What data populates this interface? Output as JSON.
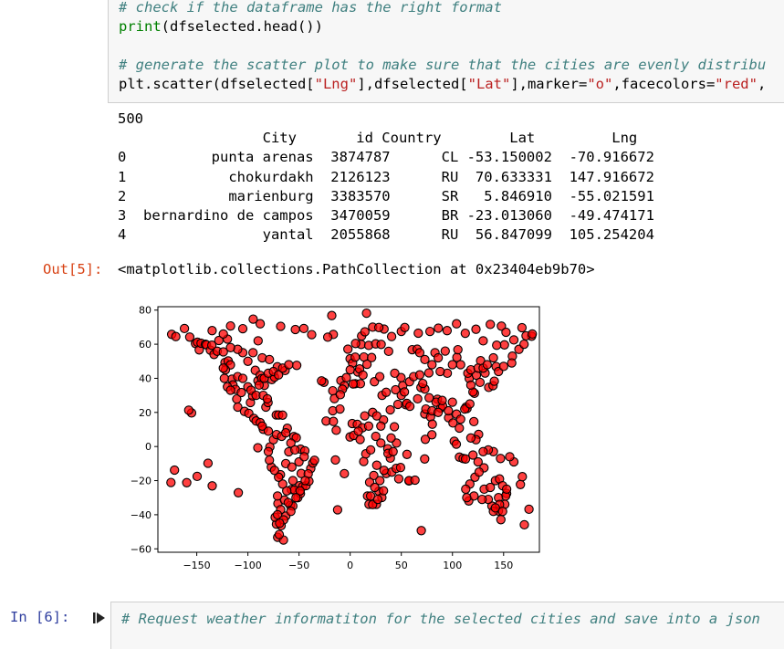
{
  "cell5": {
    "lines": [
      {
        "comment": "# check if the dataframe has the right format"
      },
      {
        "fn": "print",
        "rest": "(dfselected.head())"
      },
      {
        "blank": ""
      },
      {
        "comment": "# generate the scatter plot to make sure that the cities are evenly distribu"
      },
      {
        "pre": "plt.scatter(dfselected[",
        "s1": "\"Lng\"",
        "mid1": "],dfselected[",
        "s2": "\"Lat\"",
        "mid2": "],marker=",
        "s3": "\"o\"",
        "mid3": ",facecolors=",
        "s4": "\"red\"",
        "post": ","
      }
    ]
  },
  "output5": {
    "count": "500",
    "table": {
      "header": "                 City       id Country        Lat         Lng",
      "rows": [
        "0          punta arenas  3874787      CL -53.150002  -70.916672",
        "1            chokurdakh  2126123      RU  70.633331  147.916672",
        "2            marienburg  3383570      SR   5.846910  -55.021591",
        "3  bernardino de campos  3470059      BR -23.013060  -49.474171",
        "4                yantal  2055868      RU  56.847099  105.254204"
      ]
    },
    "out_prompt": "Out[5]:",
    "repr": "<matplotlib.collections.PathCollection at 0x23404eb9b70>"
  },
  "chart_data": {
    "type": "scatter",
    "x_ticks": [
      -150,
      -100,
      -50,
      0,
      50,
      100,
      150
    ],
    "y_ticks": [
      -60,
      -40,
      -20,
      0,
      20,
      40,
      60,
      80
    ],
    "xlim": [
      -188,
      185
    ],
    "ylim": [
      -62,
      82
    ],
    "marker_face": "#ff0000",
    "marker_edge": "#000000",
    "marker_alpha": 0.75,
    "points": [
      [
        -174.5,
        65.8
      ],
      [
        -170.5,
        64.5
      ],
      [
        -162,
        69.2
      ],
      [
        -156.9,
        64.2
      ],
      [
        -151.2,
        60.4
      ],
      [
        -149.4,
        61.2
      ],
      [
        -147.6,
        56.7
      ],
      [
        -145.8,
        60.6
      ],
      [
        -141.5,
        60
      ],
      [
        -140.5,
        59.6
      ],
      [
        -136.7,
        56.5
      ],
      [
        -135.3,
        59.4
      ],
      [
        -133.1,
        54
      ],
      [
        -130,
        55.9
      ],
      [
        -128.4,
        62.2
      ],
      [
        -124,
        55.5
      ],
      [
        -122.4,
        49.3
      ],
      [
        -119.3,
        50.2
      ],
      [
        -117.1,
        47.9
      ],
      [
        -115.5,
        39.5
      ],
      [
        -114.6,
        36.1
      ],
      [
        -112.1,
        33.5
      ],
      [
        -110.9,
        27.9
      ],
      [
        -109.9,
        23.1
      ],
      [
        -106.4,
        31.7
      ],
      [
        -103.3,
        20.6
      ],
      [
        -99.1,
        19.4
      ],
      [
        -97.5,
        25.8
      ],
      [
        -95.4,
        29.7
      ],
      [
        -94.2,
        16.5
      ],
      [
        -92.8,
        44.7
      ],
      [
        -90.2,
        38.6
      ],
      [
        -88.1,
        41.8
      ],
      [
        -86.5,
        39.8
      ],
      [
        -84.9,
        10.1
      ],
      [
        -83.9,
        35.9
      ],
      [
        -82.4,
        23.1
      ],
      [
        -80.3,
        25.8
      ],
      [
        -78.5,
        -0.2
      ],
      [
        -77.1,
        -12.1
      ],
      [
        -76.6,
        39.3
      ],
      [
        -74.0,
        40.7
      ],
      [
        -72.3,
        18.5
      ],
      [
        -71.2,
        46.8
      ],
      [
        -70.9,
        -53.2
      ],
      [
        -70.7,
        -33.4
      ],
      [
        -69.9,
        18.5
      ],
      [
        -68.2,
        -16.5
      ],
      [
        -66.1,
        18.4
      ],
      [
        -64.2,
        -31.4
      ],
      [
        -63.6,
        44.6
      ],
      [
        -61.5,
        10.7
      ],
      [
        -60.0,
        -3.1
      ],
      [
        -58.4,
        -34.6
      ],
      [
        -57.5,
        -25.3
      ],
      [
        -56.1,
        -34.9
      ],
      [
        -55.0,
        5.8
      ],
      [
        -52.7,
        5.2
      ],
      [
        -49.5,
        -23.0
      ],
      [
        -48.5,
        -1.5
      ],
      [
        -47.9,
        -15.8
      ],
      [
        -46.6,
        -23.5
      ],
      [
        -44.3,
        -2.5
      ],
      [
        -43.2,
        -22.9
      ],
      [
        -40.3,
        -20.3
      ],
      [
        -38.5,
        -12.9
      ],
      [
        -36.6,
        -9.7
      ],
      [
        -34.9,
        -8.1
      ],
      [
        -52.3,
        47.6
      ],
      [
        -67.5,
        -46.4
      ],
      [
        -65.2,
        -54.8
      ],
      [
        -72.1,
        -45.5
      ],
      [
        -73.3,
        -41.5
      ],
      [
        -69.3,
        -51.6
      ],
      [
        -63.0,
        -40.8
      ],
      [
        -58.0,
        -38.0
      ],
      [
        -51.2,
        -30.0
      ],
      [
        -48.6,
        -27.6
      ],
      [
        -54.5,
        -25.5
      ],
      [
        -60.6,
        -32.9
      ],
      [
        -16.5,
        65.7
      ],
      [
        -21.9,
        64.1
      ],
      [
        -9.1,
        38.7
      ],
      [
        -3.7,
        40.4
      ],
      [
        -2.2,
        57.1
      ],
      [
        -0.1,
        51.5
      ],
      [
        2.3,
        48.9
      ],
      [
        4.9,
        52.4
      ],
      [
        7.4,
        43.7
      ],
      [
        9.2,
        45.5
      ],
      [
        10.7,
        59.9
      ],
      [
        12.5,
        41.9
      ],
      [
        13.4,
        52.5
      ],
      [
        16.4,
        48.2
      ],
      [
        18.1,
        59.3
      ],
      [
        21.0,
        52.2
      ],
      [
        23.7,
        38.0
      ],
      [
        24.9,
        60.2
      ],
      [
        28.9,
        41.0
      ],
      [
        30.3,
        59.9
      ],
      [
        31.2,
        30.0
      ],
      [
        32.6,
        15.6
      ],
      [
        35.2,
        31.8
      ],
      [
        36.8,
        -1.3
      ],
      [
        37.6,
        55.8
      ],
      [
        39.2,
        21.5
      ],
      [
        39.3,
        -6.8
      ],
      [
        44.4,
        33.3
      ],
      [
        45.3,
        2.0
      ],
      [
        46.7,
        24.7
      ],
      [
        47.5,
        -18.9
      ],
      [
        49.7,
        40.4
      ],
      [
        51.4,
        35.7
      ],
      [
        54.4,
        24.5
      ],
      [
        55.3,
        25.3
      ],
      [
        57.5,
        -20.2
      ],
      [
        58.4,
        23.6
      ],
      [
        60.6,
        56.8
      ],
      [
        65.5,
        57.1
      ],
      [
        69.2,
        34.6
      ],
      [
        72.9,
        19.1
      ],
      [
        73.0,
        33.7
      ],
      [
        76.9,
        43.2
      ],
      [
        77.2,
        28.6
      ],
      [
        78.5,
        17.4
      ],
      [
        80.3,
        13.1
      ],
      [
        82.9,
        55.0
      ],
      [
        85.3,
        27.7
      ],
      [
        88.4,
        22.6
      ],
      [
        90.4,
        23.8
      ],
      [
        92.9,
        56.0
      ],
      [
        96.2,
        16.9
      ],
      [
        100.5,
        13.8
      ],
      [
        101.7,
        3.1
      ],
      [
        103.8,
        1.4
      ],
      [
        104.3,
        52.3
      ],
      [
        105.3,
        56.8
      ],
      [
        106.8,
        -6.2
      ],
      [
        106.7,
        10.8
      ],
      [
        110.4,
        -7.0
      ],
      [
        112.8,
        -7.3
      ],
      [
        113.3,
        23.1
      ],
      [
        114.2,
        22.3
      ],
      [
        115.9,
        -31.9
      ],
      [
        116.4,
        39.9
      ],
      [
        120.9,
        14.6
      ],
      [
        121.5,
        31.2
      ],
      [
        123.4,
        41.8
      ],
      [
        125.6,
        7.1
      ],
      [
        126.9,
        37.6
      ],
      [
        127.5,
        50.3
      ],
      [
        130.8,
        -12.5
      ],
      [
        131.9,
        43.1
      ],
      [
        135.5,
        34.7
      ],
      [
        138.6,
        -34.9
      ],
      [
        139.7,
        35.7
      ],
      [
        140.9,
        38.3
      ],
      [
        142.7,
        46.9
      ],
      [
        144.9,
        -37.8
      ],
      [
        147.3,
        -42.9
      ],
      [
        147.9,
        70.6
      ],
      [
        150.8,
        59.6
      ],
      [
        151.2,
        -33.9
      ],
      [
        153.0,
        -27.5
      ],
      [
        158.6,
        53.0
      ],
      [
        166.4,
        -22.3
      ],
      [
        168.3,
        -17.7
      ],
      [
        170.3,
        -45.9
      ],
      [
        174.8,
        -36.8
      ],
      [
        177.4,
        64.7
      ],
      [
        -175.2,
        -21.1
      ],
      [
        -171.8,
        -13.8
      ],
      [
        -159.8,
        -21.2
      ],
      [
        -149.6,
        -17.5
      ],
      [
        -155.1,
        19.7
      ],
      [
        -157.8,
        21.3
      ],
      [
        -139.0,
        -9.8
      ],
      [
        -134.9,
        -23.1
      ],
      [
        -109.4,
        -27.1
      ],
      [
        -90.3,
        -0.7
      ],
      [
        -14.4,
        -7.9
      ],
      [
        -5.7,
        -15.9
      ],
      [
        -12.3,
        -37.1
      ],
      [
        -23.5,
        14.9
      ],
      [
        -25.7,
        37.7
      ],
      [
        -28.0,
        38.5
      ],
      [
        -17.0,
        32.7
      ],
      [
        -15.4,
        28.1
      ],
      [
        -13.6,
        9.5
      ],
      [
        -0.2,
        5.6
      ],
      [
        3.4,
        6.5
      ],
      [
        9.7,
        4.1
      ],
      [
        13.2,
        -8.8
      ],
      [
        15.3,
        -4.3
      ],
      [
        18.4,
        -33.9
      ],
      [
        25.6,
        -33.9
      ],
      [
        28.0,
        -26.2
      ],
      [
        31.0,
        -29.9
      ],
      [
        32.6,
        -25.9
      ],
      [
        35.3,
        -15.8
      ],
      [
        40.7,
        -15.0
      ],
      [
        43.2,
        11.6
      ],
      [
        45.0,
        -12.8
      ],
      [
        49.3,
        -12.3
      ],
      [
        55.5,
        -4.6
      ],
      [
        73.5,
        4.2
      ],
      [
        79.9,
        6.9
      ],
      [
        72.8,
        -7.3
      ],
      [
        57.6,
        -20.0
      ],
      [
        63.4,
        -19.7
      ],
      [
        69.5,
        -49.3
      ],
      [
        50.0,
        67.5
      ],
      [
        40.5,
        64.5
      ],
      [
        33.1,
        68.9
      ],
      [
        43.6,
        43.0
      ],
      [
        53.4,
        69.8
      ],
      [
        66.6,
        66.5
      ],
      [
        78.0,
        67.5
      ],
      [
        86.2,
        69.4
      ],
      [
        94.8,
        68.0
      ],
      [
        104.0,
        72.0
      ],
      [
        112.5,
        66.4
      ],
      [
        123.0,
        68.8
      ],
      [
        130.0,
        62.0
      ],
      [
        137.0,
        71.6
      ],
      [
        143.2,
        59.4
      ],
      [
        152.3,
        67.0
      ],
      [
        160.0,
        62.5
      ],
      [
        168.0,
        69.7
      ],
      [
        172.0,
        64.9
      ],
      [
        -88,
        72
      ],
      [
        -105,
        69.1
      ],
      [
        -94.8,
        74.7
      ],
      [
        -117,
        70.7
      ],
      [
        -68,
        70.5
      ],
      [
        -45.3,
        69.2
      ],
      [
        -53.6,
        68.6
      ],
      [
        -37.6,
        65.6
      ],
      [
        -18.0,
        76.8
      ],
      [
        16,
        78.2
      ],
      [
        22,
        70.0
      ],
      [
        28,
        69.8
      ],
      [
        11.2,
        64.8
      ],
      [
        14.4,
        67.3
      ],
      [
        5.3,
        60.4
      ],
      [
        0,
        45
      ],
      [
        5,
        36.8
      ],
      [
        10,
        36.8
      ],
      [
        2.9,
        36.7
      ],
      [
        -5.8,
        35.7
      ],
      [
        -7.6,
        33.6
      ],
      [
        -9.6,
        30.4
      ],
      [
        -17.0,
        21.0
      ],
      [
        -16.4,
        14.7
      ],
      [
        -10,
        22
      ],
      [
        2,
        13.5
      ],
      [
        7,
        13
      ],
      [
        12,
        11
      ],
      [
        18,
        12
      ],
      [
        8,
        9
      ],
      [
        14.2,
        18
      ],
      [
        22,
        20
      ],
      [
        26,
        18
      ],
      [
        30,
        12
      ],
      [
        25,
        6
      ],
      [
        30,
        2
      ],
      [
        20,
        -2
      ],
      [
        26,
        -11
      ],
      [
        23,
        -17
      ],
      [
        19,
        -21
      ],
      [
        24,
        -24
      ],
      [
        29,
        -20
      ],
      [
        33,
        -14
      ],
      [
        37,
        -4
      ],
      [
        40,
        5
      ],
      [
        42,
        -3
      ],
      [
        17,
        -29
      ],
      [
        20,
        -29
      ],
      [
        22,
        -34
      ],
      [
        27,
        -31
      ],
      [
        50,
        30
      ],
      [
        53,
        32
      ],
      [
        58,
        38
      ],
      [
        62,
        41
      ],
      [
        68,
        42
      ],
      [
        71,
        37
      ],
      [
        66,
        28
      ],
      [
        74,
        22
      ],
      [
        80,
        21
      ],
      [
        84,
        26
      ],
      [
        86,
        20
      ],
      [
        90,
        27
      ],
      [
        100,
        26
      ],
      [
        96,
        21
      ],
      [
        104,
        19
      ],
      [
        108,
        16
      ],
      [
        112,
        22
      ],
      [
        117,
        25
      ],
      [
        120,
        32
      ],
      [
        118,
        36
      ],
      [
        115,
        43
      ],
      [
        108,
        48
      ],
      [
        100,
        48
      ],
      [
        95,
        43
      ],
      [
        88,
        44
      ],
      [
        80,
        48
      ],
      [
        73,
        51
      ],
      [
        68,
        55
      ],
      [
        86,
        52
      ],
      [
        118,
        45
      ],
      [
        125,
        46
      ],
      [
        130,
        46
      ],
      [
        134,
        48
      ],
      [
        140,
        52
      ],
      [
        145,
        44
      ],
      [
        150,
        47
      ],
      [
        158,
        49
      ],
      [
        165,
        57
      ],
      [
        170,
        60
      ],
      [
        178,
        66
      ],
      [
        117,
        -22
      ],
      [
        122,
        -18
      ],
      [
        126,
        -15
      ],
      [
        131,
        -25
      ],
      [
        137,
        -24
      ],
      [
        142,
        -20
      ],
      [
        146,
        -19
      ],
      [
        149,
        -23
      ],
      [
        152,
        -29
      ],
      [
        145,
        -30
      ],
      [
        140,
        -38
      ],
      [
        135,
        -31
      ],
      [
        129,
        -31
      ],
      [
        121,
        -29
      ],
      [
        113,
        -25
      ],
      [
        114,
        -30
      ],
      [
        146,
        -34
      ],
      [
        142,
        -36
      ],
      [
        149,
        -38
      ],
      [
        153,
        -25
      ],
      [
        160,
        -9
      ],
      [
        156,
        -6
      ],
      [
        147,
        -7
      ],
      [
        140,
        -3
      ],
      [
        135,
        -2
      ],
      [
        130,
        -3
      ],
      [
        125,
        -9
      ],
      [
        120,
        -5
      ],
      [
        123,
        4
      ],
      [
        118,
        5
      ],
      [
        -92,
        15
      ],
      [
        -88,
        14
      ],
      [
        -86,
        12
      ],
      [
        -80,
        9
      ],
      [
        -75,
        4
      ],
      [
        -72,
        7
      ],
      [
        -67,
        6
      ],
      [
        -63,
        8
      ],
      [
        -58,
        2
      ],
      [
        -54,
        -2
      ],
      [
        -63,
        -10
      ],
      [
        -57,
        -12
      ],
      [
        -50,
        -9
      ],
      [
        -45,
        -6
      ],
      [
        -41,
        -16
      ],
      [
        -44,
        -20
      ],
      [
        -49,
        -26
      ],
      [
        -53,
        -30
      ],
      [
        -56,
        -20
      ],
      [
        -62,
        -26
      ],
      [
        -66,
        -22
      ],
      [
        -70,
        -18
      ],
      [
        -74,
        -14
      ],
      [
        -79,
        -8
      ],
      [
        -80,
        -3
      ],
      [
        -71,
        -29
      ],
      [
        -68,
        -37
      ],
      [
        -71,
        -40
      ],
      [
        -65,
        -43
      ],
      [
        -69,
        -45
      ],
      [
        -120,
        35
      ],
      [
        -117,
        33
      ],
      [
        -123,
        40
      ],
      [
        -122,
        45
      ],
      [
        -124,
        46
      ],
      [
        -110,
        41
      ],
      [
        -105,
        40
      ],
      [
        -100,
        35
      ],
      [
        -97,
        33
      ],
      [
        -92,
        30
      ],
      [
        -85,
        30
      ],
      [
        -81,
        28
      ],
      [
        -89,
        36
      ],
      [
        -84,
        40
      ],
      [
        -80,
        43
      ],
      [
        -75,
        44
      ],
      [
        -70,
        42
      ],
      [
        -66,
        46
      ],
      [
        -60,
        48
      ],
      [
        -100,
        50
      ],
      [
        -105,
        55
      ],
      [
        -95,
        55
      ],
      [
        -86,
        52
      ],
      [
        -79,
        51
      ],
      [
        -110,
        57
      ],
      [
        -117,
        58
      ],
      [
        -120,
        63
      ],
      [
        -135,
        68
      ],
      [
        -124,
        66
      ],
      [
        -90,
        62
      ]
    ]
  }
}
